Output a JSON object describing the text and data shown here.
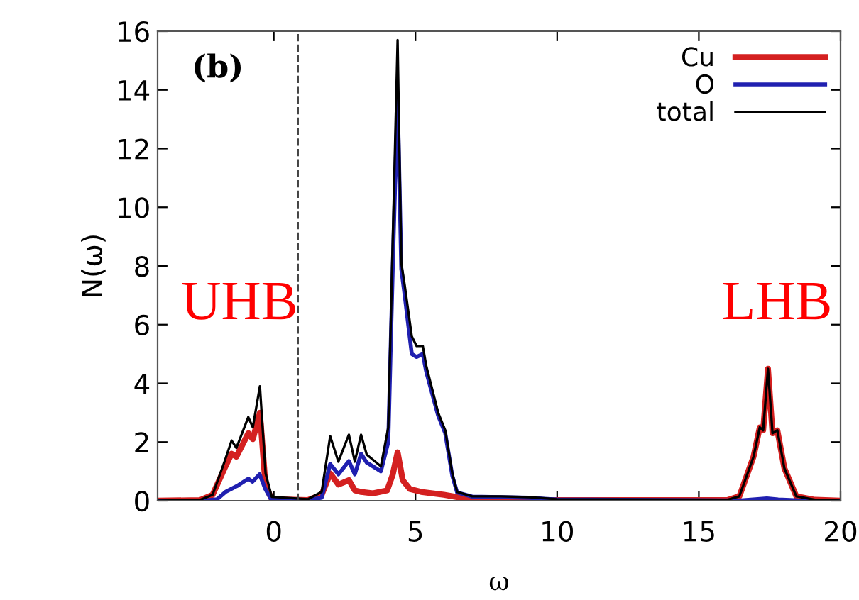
{
  "chart_data": {
    "type": "line",
    "xlabel": "ω",
    "ylabel": "N(ω)",
    "xlim": [
      -4.1,
      20
    ],
    "ylim": [
      0,
      16
    ],
    "xticks": [
      0,
      5,
      10,
      15,
      20
    ],
    "yticks": [
      0,
      2,
      4,
      6,
      8,
      10,
      12,
      14,
      16
    ],
    "grid": false,
    "legend": "top right",
    "marker": "none",
    "line_style": "solid",
    "ref_lines": [
      {
        "axis": "x",
        "value": 0.85,
        "line_style": "dashed",
        "color": "#444444"
      }
    ],
    "annotations": [
      "(b)",
      "UHB",
      "LHB"
    ],
    "series": [
      {
        "name": "Cu",
        "color": "#d42020",
        "x": [
          -4.1,
          -2.6,
          -2.16,
          -1.74,
          -1.49,
          -1.32,
          -0.9,
          -0.74,
          -0.49,
          -0.29,
          -0.07,
          1.2,
          1.69,
          1.99,
          2.28,
          2.65,
          2.86,
          3.08,
          3.5,
          4.0,
          4.2,
          4.37,
          4.55,
          4.8,
          5.2,
          5.6,
          6.0,
          6.5,
          7.0,
          8.0,
          10,
          16.0,
          16.43,
          16.93,
          17.15,
          17.27,
          17.44,
          17.6,
          17.77,
          18.02,
          18.44,
          19.1,
          20
        ],
        "values": [
          0,
          0.02,
          0.2,
          1.1,
          1.6,
          1.5,
          2.3,
          2.1,
          3.0,
          0.5,
          0.05,
          0.02,
          0.2,
          0.93,
          0.55,
          0.7,
          0.35,
          0.3,
          0.25,
          0.35,
          0.9,
          1.65,
          0.7,
          0.4,
          0.3,
          0.25,
          0.2,
          0.12,
          0.08,
          0.03,
          0.02,
          0.02,
          0.15,
          1.5,
          2.5,
          2.4,
          4.5,
          2.3,
          2.4,
          1.1,
          0.15,
          0.03,
          0
        ]
      },
      {
        "name": "O",
        "color": "#2020b0",
        "x": [
          -4.1,
          -2.4,
          -2.0,
          -1.7,
          -1.3,
          -0.9,
          -0.75,
          -0.5,
          -0.3,
          -0.1,
          1.2,
          1.69,
          1.99,
          2.28,
          2.65,
          2.86,
          3.08,
          3.28,
          3.78,
          4.04,
          4.2,
          4.37,
          4.5,
          4.62,
          4.87,
          5.04,
          5.26,
          5.38,
          5.8,
          6.05,
          6.3,
          6.47,
          7.0,
          8.0,
          9.0,
          10.0,
          16.5,
          17.0,
          17.4,
          17.8,
          18.5,
          20
        ],
        "values": [
          0,
          0.01,
          0.05,
          0.3,
          0.5,
          0.75,
          0.65,
          0.9,
          0.4,
          0.05,
          0.02,
          0.1,
          1.25,
          0.9,
          1.35,
          0.9,
          1.6,
          1.3,
          1.0,
          2.0,
          8.0,
          13.8,
          7.9,
          7.0,
          5.0,
          4.9,
          5.0,
          4.4,
          2.9,
          2.3,
          0.85,
          0.28,
          0.14,
          0.12,
          0.1,
          0.04,
          0.01,
          0.05,
          0.08,
          0.04,
          0.01,
          0
        ]
      },
      {
        "name": "total",
        "color": "#000000",
        "x": [
          -4.1,
          -2.6,
          -2.16,
          -1.74,
          -1.49,
          -1.32,
          -0.9,
          -0.74,
          -0.49,
          -0.29,
          -0.07,
          1.2,
          1.69,
          1.99,
          2.28,
          2.65,
          2.86,
          3.08,
          3.28,
          3.78,
          4.04,
          4.2,
          4.37,
          4.5,
          4.62,
          4.87,
          5.04,
          5.26,
          5.38,
          5.8,
          6.05,
          6.3,
          6.47,
          7.0,
          8.0,
          9.0,
          10.0,
          16.0,
          16.43,
          16.93,
          17.15,
          17.27,
          17.44,
          17.6,
          17.77,
          18.02,
          18.44,
          19.1,
          20
        ],
        "values": [
          0,
          0.03,
          0.2,
          1.33,
          2.05,
          1.8,
          2.85,
          2.5,
          3.9,
          0.93,
          0.13,
          0.05,
          0.3,
          2.2,
          1.33,
          2.25,
          1.33,
          2.25,
          1.57,
          1.17,
          2.5,
          8.96,
          15.7,
          8.1,
          7.35,
          5.6,
          5.27,
          5.27,
          4.6,
          3.0,
          2.4,
          0.93,
          0.3,
          0.15,
          0.15,
          0.12,
          0.05,
          0.03,
          0.15,
          1.5,
          2.5,
          2.4,
          4.5,
          2.3,
          2.4,
          1.1,
          0.15,
          0.03,
          0
        ]
      }
    ]
  }
}
